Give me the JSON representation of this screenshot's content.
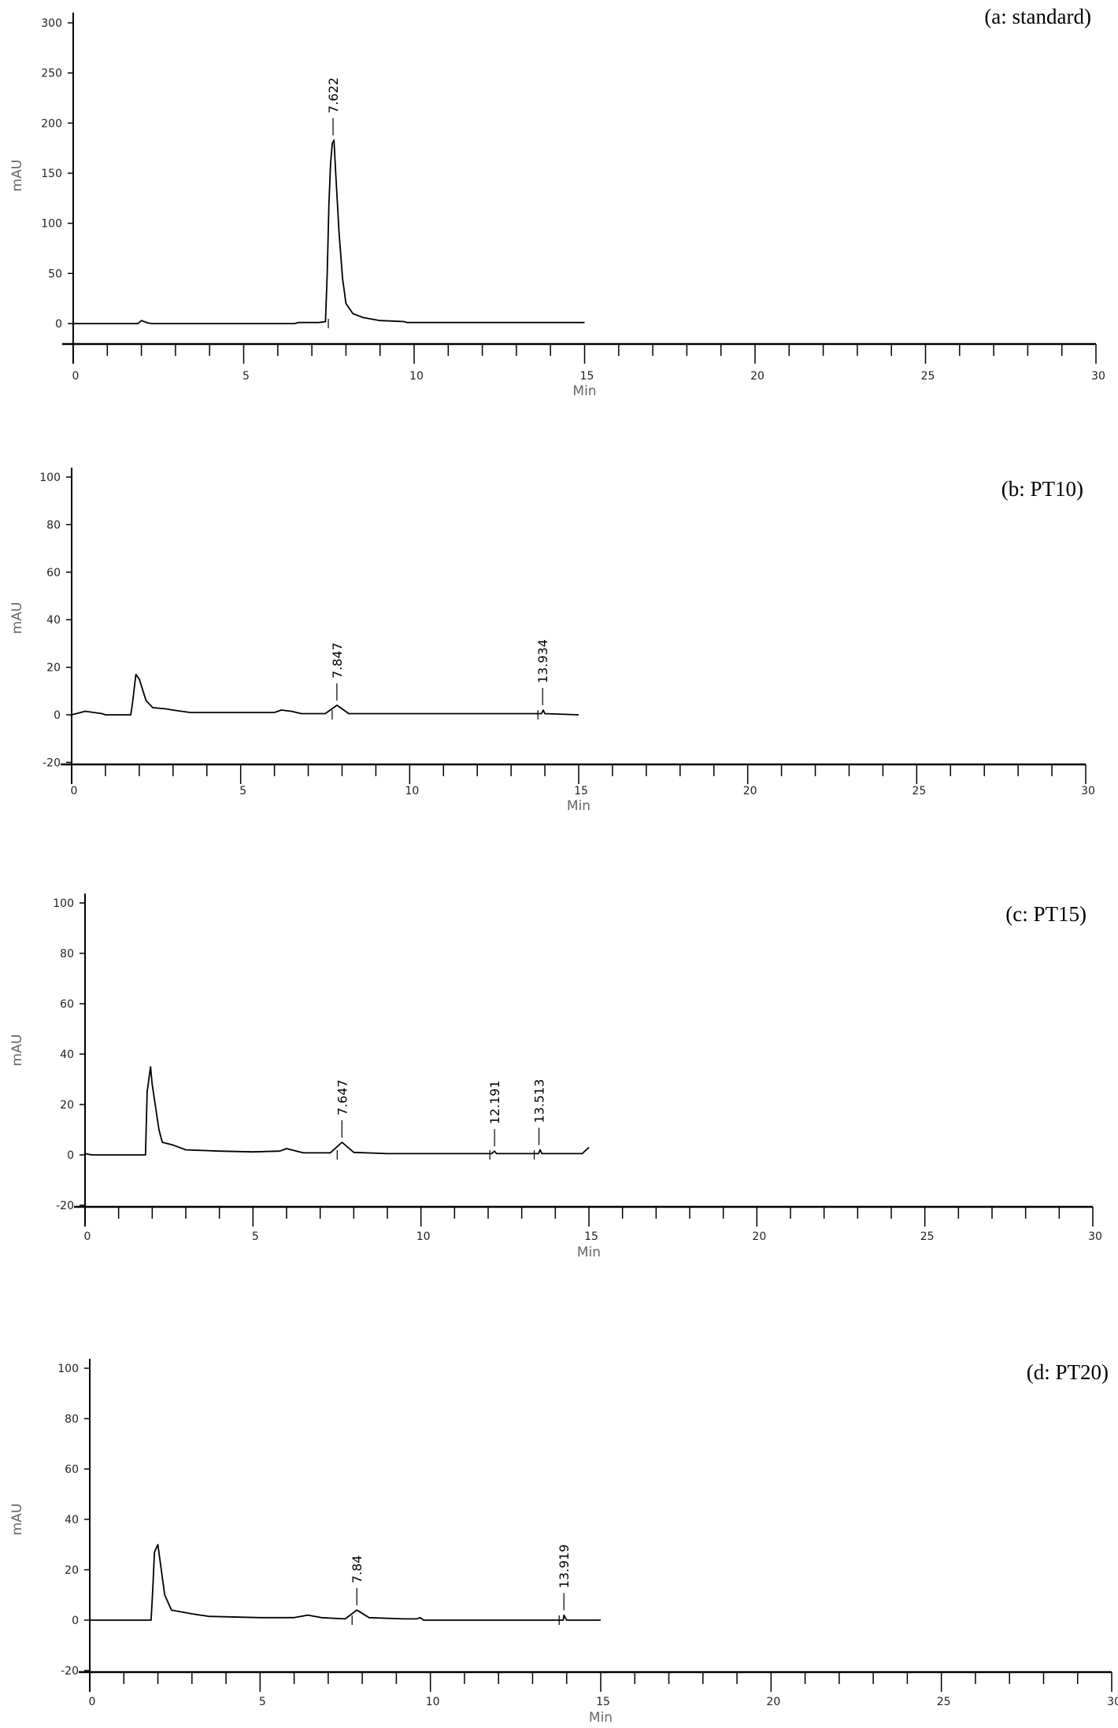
{
  "chart_data": [
    {
      "type": "line",
      "panel_label": "(a: standard)",
      "xlabel": "Min",
      "ylabel": "mAU",
      "xlim": [
        0,
        30
      ],
      "ylim": [
        -20,
        300
      ],
      "xticks": [
        0,
        5,
        10,
        15,
        20,
        25,
        30
      ],
      "yticks": [
        0,
        50,
        100,
        150,
        200,
        250,
        300
      ],
      "grid": false,
      "trace": [
        [
          0,
          0
        ],
        [
          1.9,
          0
        ],
        [
          2.0,
          3
        ],
        [
          2.2,
          0.5
        ],
        [
          2.3,
          0
        ],
        [
          6.5,
          0
        ],
        [
          6.6,
          1
        ],
        [
          7.2,
          1
        ],
        [
          7.4,
          2
        ],
        [
          7.45,
          50
        ],
        [
          7.5,
          120
        ],
        [
          7.55,
          160
        ],
        [
          7.6,
          180
        ],
        [
          7.65,
          183
        ],
        [
          7.7,
          150
        ],
        [
          7.8,
          90
        ],
        [
          7.9,
          45
        ],
        [
          8.0,
          20
        ],
        [
          8.2,
          10
        ],
        [
          8.5,
          6
        ],
        [
          9,
          3
        ],
        [
          9.7,
          2
        ],
        [
          9.8,
          1
        ],
        [
          15,
          1
        ]
      ],
      "peaks": [
        {
          "time": 7.622,
          "label": "7.622",
          "height": 183
        }
      ]
    },
    {
      "type": "line",
      "panel_label": "(b: PT10)",
      "xlabel": "Min",
      "ylabel": "mAU",
      "xlim": [
        0,
        30
      ],
      "ylim": [
        -20,
        100
      ],
      "xticks": [
        0,
        5,
        10,
        15,
        20,
        25,
        30
      ],
      "yticks": [
        -20,
        0,
        20,
        40,
        60,
        80,
        100
      ],
      "grid": false,
      "trace": [
        [
          0,
          0
        ],
        [
          0.4,
          1.5
        ],
        [
          0.9,
          0.5
        ],
        [
          1,
          0
        ],
        [
          1.75,
          0
        ],
        [
          1.8,
          5
        ],
        [
          1.9,
          17
        ],
        [
          2.0,
          15
        ],
        [
          2.2,
          6
        ],
        [
          2.4,
          3
        ],
        [
          2.8,
          2.5
        ],
        [
          3,
          2
        ],
        [
          3.5,
          1
        ],
        [
          4,
          1
        ],
        [
          5,
          1
        ],
        [
          6,
          1
        ],
        [
          6.2,
          2
        ],
        [
          6.5,
          1.5
        ],
        [
          6.8,
          0.5
        ],
        [
          7.5,
          0.5
        ],
        [
          7.85,
          4
        ],
        [
          8.2,
          0.5
        ],
        [
          13.9,
          0.5
        ],
        [
          13.95,
          2
        ],
        [
          14,
          0.5
        ],
        [
          15,
          0
        ]
      ],
      "peaks": [
        {
          "time": 7.847,
          "label": "7.847",
          "height": 4
        },
        {
          "time": 13.934,
          "label": "13.934",
          "height": 2
        }
      ]
    },
    {
      "type": "line",
      "panel_label": "(c: PT15)",
      "xlabel": "Min",
      "ylabel": "mAU",
      "xlim": [
        0,
        30
      ],
      "ylim": [
        -20,
        100
      ],
      "xticks": [
        0,
        5,
        10,
        15,
        20,
        25,
        30
      ],
      "yticks": [
        -20,
        0,
        20,
        40,
        60,
        80,
        100
      ],
      "grid": false,
      "trace": [
        [
          0,
          0.5
        ],
        [
          0.2,
          0
        ],
        [
          1.8,
          0
        ],
        [
          1.85,
          25
        ],
        [
          1.95,
          35
        ],
        [
          2.0,
          28
        ],
        [
          2.2,
          10
        ],
        [
          2.3,
          5
        ],
        [
          2.6,
          4
        ],
        [
          3,
          2
        ],
        [
          4,
          1.5
        ],
        [
          5,
          1.2
        ],
        [
          5.8,
          1.5
        ],
        [
          6.0,
          2.5
        ],
        [
          6.3,
          1.5
        ],
        [
          6.5,
          0.8
        ],
        [
          7.3,
          0.8
        ],
        [
          7.65,
          5
        ],
        [
          8.0,
          1
        ],
        [
          9,
          0.5
        ],
        [
          12.1,
          0.5
        ],
        [
          12.19,
          1.5
        ],
        [
          12.25,
          0.5
        ],
        [
          13.5,
          0.5
        ],
        [
          13.55,
          2
        ],
        [
          13.6,
          0.5
        ],
        [
          14.8,
          0.5
        ],
        [
          15,
          3
        ]
      ],
      "peaks": [
        {
          "time": 7.647,
          "label": "7.647",
          "height": 5
        },
        {
          "time": 12.191,
          "label": "12.191",
          "height": 1.5
        },
        {
          "time": 13.513,
          "label": "13.513",
          "height": 2
        }
      ]
    },
    {
      "type": "line",
      "panel_label": "(d: PT20)",
      "xlabel": "Min",
      "ylabel": "mAU",
      "xlim": [
        0,
        30
      ],
      "ylim": [
        -20,
        100
      ],
      "xticks": [
        0,
        5,
        10,
        15,
        20,
        25,
        30
      ],
      "yticks": [
        -20,
        0,
        20,
        40,
        60,
        80,
        100
      ],
      "grid": false,
      "trace": [
        [
          0,
          0
        ],
        [
          1.8,
          0
        ],
        [
          1.85,
          12
        ],
        [
          1.9,
          27
        ],
        [
          2.0,
          30
        ],
        [
          2.05,
          25
        ],
        [
          2.2,
          10
        ],
        [
          2.4,
          4
        ],
        [
          3,
          2.5
        ],
        [
          3.5,
          1.5
        ],
        [
          5,
          1
        ],
        [
          6,
          1
        ],
        [
          6.4,
          2
        ],
        [
          6.8,
          1
        ],
        [
          7.5,
          0.5
        ],
        [
          7.84,
          4
        ],
        [
          8.2,
          1
        ],
        [
          9.2,
          0.5
        ],
        [
          9.6,
          0.5
        ],
        [
          9.7,
          1
        ],
        [
          9.8,
          0
        ],
        [
          13.9,
          0
        ],
        [
          13.92,
          2
        ],
        [
          14,
          0
        ],
        [
          15,
          0
        ]
      ],
      "peaks": [
        {
          "time": 7.84,
          "label": "7.84",
          "height": 4
        },
        {
          "time": 13.919,
          "label": "13.919",
          "height": 2
        }
      ]
    }
  ]
}
